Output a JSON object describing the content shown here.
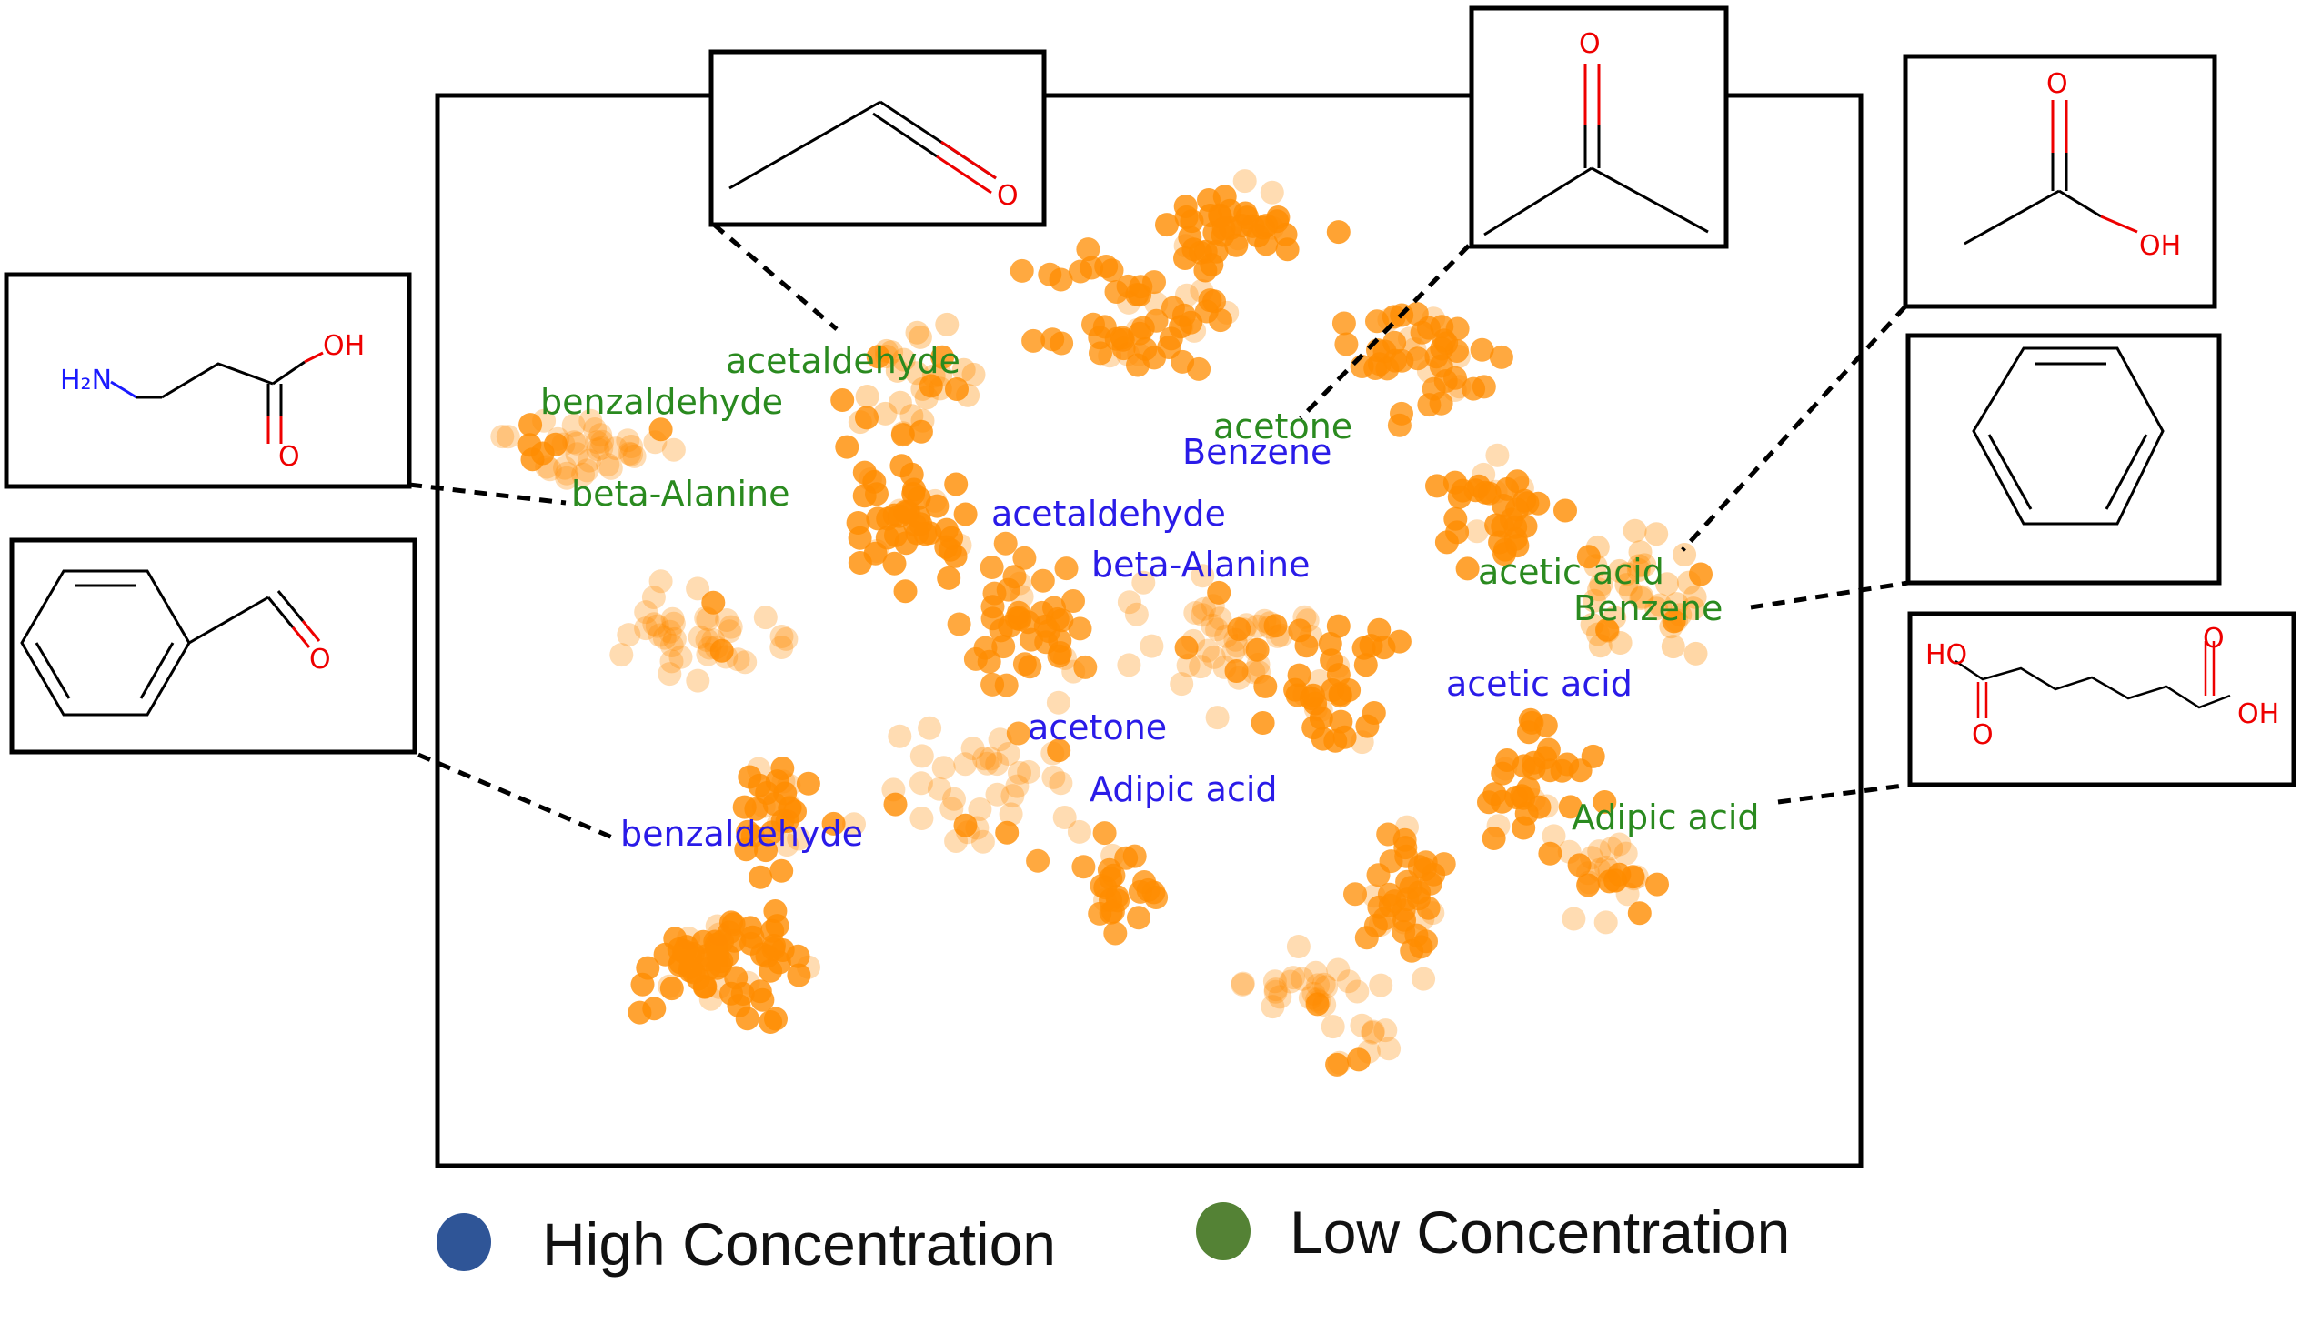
{
  "chart_data": {
    "type": "scatter",
    "title": "",
    "xlabel": "",
    "ylabel": "",
    "colors": {
      "high_label": "#2a1be8",
      "low_label": "#2a8a1f",
      "point": "#ff8c00",
      "legend_high": "#2f5597",
      "legend_low": "#548235"
    },
    "legend": [
      {
        "key": "high",
        "label": "High Concentration"
      },
      {
        "key": "low",
        "label": "Low Concentration"
      }
    ],
    "annotations": {
      "high": [
        {
          "text": "Benzene"
        },
        {
          "text": "acetaldehyde"
        },
        {
          "text": "beta-Alanine"
        },
        {
          "text": "acetic acid"
        },
        {
          "text": "acetone"
        },
        {
          "text": "Adipic acid"
        },
        {
          "text": "benzaldehyde"
        }
      ],
      "low": [
        {
          "text": "acetaldehyde"
        },
        {
          "text": "benzaldehyde"
        },
        {
          "text": "beta-Alanine"
        },
        {
          "text": "acetone"
        },
        {
          "text": "acetic acid"
        },
        {
          "text": "Benzene"
        },
        {
          "text": "Adipic acid"
        }
      ]
    },
    "structures": [
      {
        "name": "acetaldehyde-structure-icon",
        "atoms": [
          "O"
        ]
      },
      {
        "name": "acetone-structure-icon",
        "atoms": [
          "O"
        ]
      },
      {
        "name": "acetic-acid-structure-icon",
        "atoms": [
          "O",
          "OH"
        ]
      },
      {
        "name": "beta-alanine-structure-icon",
        "atoms": [
          "H₂N",
          "OH",
          "O"
        ]
      },
      {
        "name": "benzaldehyde-structure-icon",
        "atoms": [
          "O"
        ]
      },
      {
        "name": "benzene-structure-icon",
        "atoms": []
      },
      {
        "name": "adipic-acid-structure-icon",
        "atoms": [
          "HO",
          "O",
          "O",
          "OH"
        ]
      }
    ]
  }
}
